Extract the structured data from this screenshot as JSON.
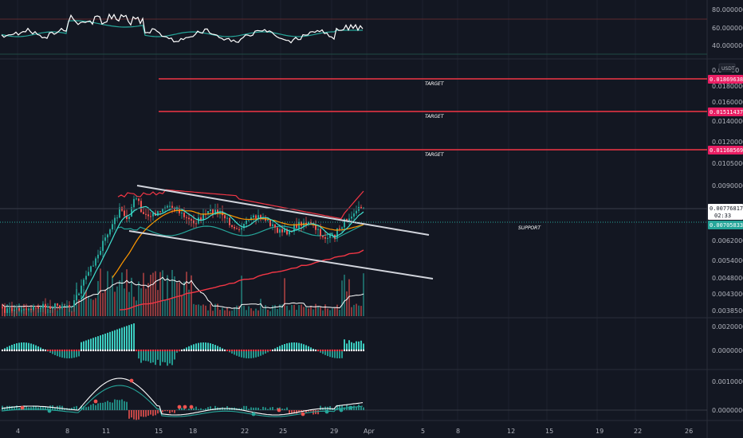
{
  "colors": {
    "background": "#131722",
    "grid": "#1e222d",
    "axis_text": "#b2b5be",
    "target_line": "#f23645",
    "target_tag": "#e91e63",
    "support_tag": "#26a69a",
    "last_price_tag": "#ffffff",
    "channel": "#d1d4dc",
    "candle_up": "#26a69a",
    "candle_down": "#ef5350",
    "volume_up": "#26a69a",
    "volume_down": "#ef5350",
    "ma_cyan": "#40e0d0",
    "ma_orange": "#ff9800",
    "ma_pink": "#f23645",
    "ma_white": "#ffffff",
    "band_red": "#f23645",
    "band_green": "#26a69a",
    "rsi_line": "#ffffff",
    "rsi_signal": "#26a69a",
    "hist_up": "#40e0d0",
    "hist_down": "#26a69a",
    "zero_dots": "#f23645",
    "macd_line": "#ffffff",
    "macd_signal": "#26a69a"
  },
  "header": {
    "currency": "USDT"
  },
  "x_axis": {
    "labels": [
      "4",
      "8",
      "11",
      "15",
      "18",
      "22",
      "25",
      "29",
      "Apr",
      "5",
      "8",
      "12",
      "15",
      "19",
      "22",
      "26"
    ]
  },
  "rsi_panel": {
    "ticks": [
      "80.00000000",
      "60.00000000",
      "40.00000000"
    ]
  },
  "price_panel": {
    "ticks": [
      "0.01800000",
      "0.01600000",
      "0.01400000",
      "0.01200000",
      "0.01050000",
      "0.00900000",
      "0.00620000",
      "0.00540000",
      "0.00480000",
      "0.00430000",
      "0.00385000"
    ],
    "partial_top_tick": "0.0",
    "partial_top_tick_right": "00",
    "targets": [
      {
        "label": "TARGET",
        "price": "0.01869638"
      },
      {
        "label": "TARGET",
        "price": "0.01511437"
      },
      {
        "label": "TARGET",
        "price": "0.01168569"
      }
    ],
    "last_price": "0.00776817",
    "countdown": "02:33",
    "support": {
      "label": "SUPPORT",
      "price": "0.00705833"
    }
  },
  "histogram_panel": {
    "ticks": [
      "0.00200000",
      "0.00000000"
    ]
  },
  "macd_panel": {
    "ticks": [
      "0.00100000",
      "0.00000000"
    ]
  },
  "chart_data": {
    "type": "candlestick",
    "instrument_quote": "USDT",
    "x_dates": [
      "4",
      "8",
      "11",
      "15",
      "18",
      "22",
      "25",
      "29",
      "Apr",
      "5",
      "8",
      "12",
      "15",
      "19",
      "22",
      "26"
    ],
    "price_targets": [
      0.01869638,
      0.01511437,
      0.01168569
    ],
    "last_price": 0.00776817,
    "support_price": 0.00705833,
    "price_axis_ticks": [
      0.018,
      0.016,
      0.014,
      0.012,
      0.0105,
      0.009,
      0.0062,
      0.0054,
      0.0048,
      0.0043,
      0.00385
    ],
    "rsi_axis_ticks": [
      80,
      60,
      40
    ],
    "histogram_axis_ticks": [
      0.002,
      0.0
    ],
    "macd_axis_ticks": [
      0.001,
      0.0
    ],
    "annotations": [
      "TARGET",
      "TARGET",
      "TARGET",
      "SUPPORT"
    ]
  }
}
